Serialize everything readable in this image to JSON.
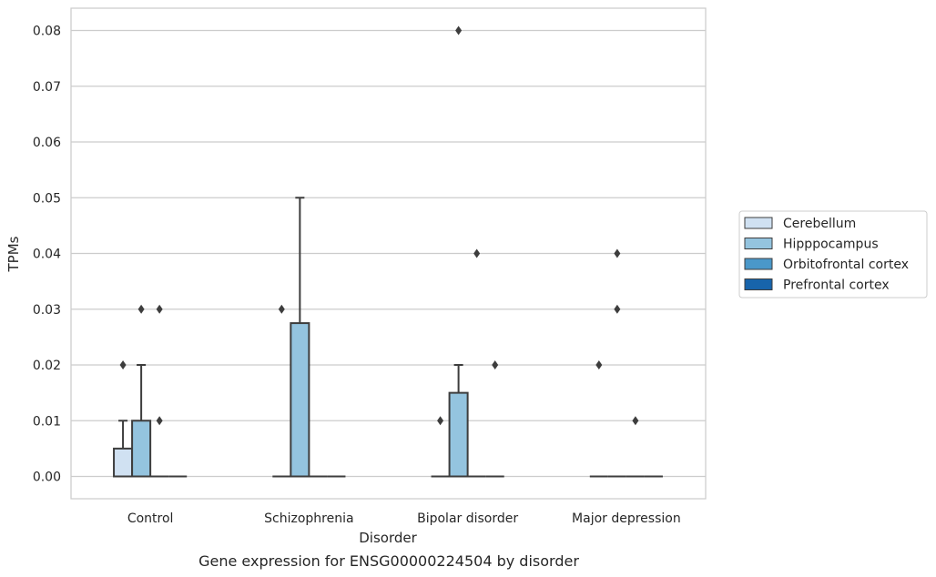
{
  "caption": "Gene expression for ENSG00000224504 by disorder",
  "chart_data": {
    "type": "box",
    "xlabel": "Disorder",
    "ylabel": "TPMs",
    "ylim": [
      -0.004,
      0.084
    ],
    "yticks": [
      0.0,
      0.01,
      0.02,
      0.03,
      0.04,
      0.05,
      0.06,
      0.07,
      0.08
    ],
    "ytick_labels": [
      "0.00",
      "0.01",
      "0.02",
      "0.03",
      "0.04",
      "0.05",
      "0.06",
      "0.07",
      "0.08"
    ],
    "grid": true,
    "legend_position": "right",
    "categories": [
      "Control",
      "Schizophrenia",
      "Bipolar disorder",
      "Major depression"
    ],
    "series": [
      {
        "name": "Cerebellum",
        "color": "#d0e1f2",
        "boxes": [
          {
            "q1": 0.0,
            "median": 0.0,
            "q3": 0.005,
            "whisker_low": 0.0,
            "whisker_high": 0.01,
            "outliers": [
              0.02
            ]
          },
          {
            "q1": 0.0,
            "median": 0.0,
            "q3": 0.0,
            "whisker_low": 0.0,
            "whisker_high": 0.0,
            "outliers": [
              0.03
            ]
          },
          {
            "q1": 0.0,
            "median": 0.0,
            "q3": 0.0,
            "whisker_low": 0.0,
            "whisker_high": 0.0,
            "outliers": [
              0.01
            ]
          },
          {
            "q1": 0.0,
            "median": 0.0,
            "q3": 0.0,
            "whisker_low": 0.0,
            "whisker_high": 0.0,
            "outliers": [
              0.02
            ]
          }
        ]
      },
      {
        "name": "Hipppocampus",
        "color": "#94c4df",
        "boxes": [
          {
            "q1": 0.0,
            "median": 0.0,
            "q3": 0.01,
            "whisker_low": 0.0,
            "whisker_high": 0.02,
            "outliers": [
              0.03
            ]
          },
          {
            "q1": 0.0,
            "median": 0.0,
            "q3": 0.0275,
            "whisker_low": 0.0,
            "whisker_high": 0.05,
            "outliers": []
          },
          {
            "q1": 0.0,
            "median": 0.0,
            "q3": 0.015,
            "whisker_low": 0.0,
            "whisker_high": 0.02,
            "outliers": [
              0.08
            ]
          },
          {
            "q1": 0.0,
            "median": 0.0,
            "q3": 0.0,
            "whisker_low": 0.0,
            "whisker_high": 0.0,
            "outliers": [
              0.04,
              0.03
            ]
          }
        ]
      },
      {
        "name": "Orbitofrontal cortex",
        "color": "#4a98c9",
        "boxes": [
          {
            "q1": 0.0,
            "median": 0.0,
            "q3": 0.0,
            "whisker_low": 0.0,
            "whisker_high": 0.0,
            "outliers": [
              0.03,
              0.01
            ]
          },
          {
            "q1": 0.0,
            "median": 0.0,
            "q3": 0.0,
            "whisker_low": 0.0,
            "whisker_high": 0.0,
            "outliers": []
          },
          {
            "q1": 0.0,
            "median": 0.0,
            "q3": 0.0,
            "whisker_low": 0.0,
            "whisker_high": 0.0,
            "outliers": [
              0.04
            ]
          },
          {
            "q1": 0.0,
            "median": 0.0,
            "q3": 0.0,
            "whisker_low": 0.0,
            "whisker_high": 0.0,
            "outliers": [
              0.01
            ]
          }
        ]
      },
      {
        "name": "Prefrontal cortex",
        "color": "#1764ab",
        "boxes": [
          {
            "q1": 0.0,
            "median": 0.0,
            "q3": 0.0,
            "whisker_low": 0.0,
            "whisker_high": 0.0,
            "outliers": []
          },
          {
            "q1": 0.0,
            "median": 0.0,
            "q3": 0.0,
            "whisker_low": 0.0,
            "whisker_high": 0.0,
            "outliers": []
          },
          {
            "q1": 0.0,
            "median": 0.0,
            "q3": 0.0,
            "whisker_low": 0.0,
            "whisker_high": 0.0,
            "outliers": [
              0.02
            ]
          },
          {
            "q1": 0.0,
            "median": 0.0,
            "q3": 0.0,
            "whisker_low": 0.0,
            "whisker_high": 0.0,
            "outliers": []
          }
        ]
      }
    ]
  }
}
